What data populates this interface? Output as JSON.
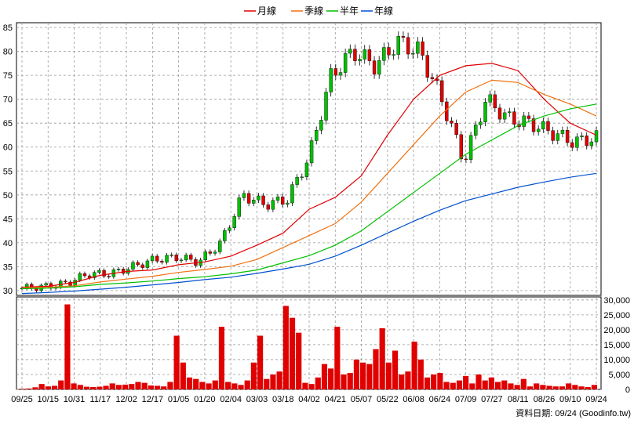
{
  "legend": [
    {
      "label": "月線",
      "color": "#e00000"
    },
    {
      "label": "季線",
      "color": "#f07010"
    },
    {
      "label": "半年",
      "color": "#00c000"
    },
    {
      "label": "年線",
      "color": "#0050d0"
    }
  ],
  "footer": "資料日期: 09/24  (Goodinfo.tw)",
  "colors": {
    "up": "#00c000",
    "down": "#e00000",
    "volume": "#e00000",
    "grid": "#999999"
  },
  "chart_data": {
    "type": "line",
    "price_axis": {
      "ticks": [
        30,
        35,
        40,
        45,
        50,
        55,
        60,
        65,
        70,
        75,
        80,
        85
      ],
      "ylim": [
        29,
        86
      ]
    },
    "volume_axis": {
      "ticks": [
        0,
        5000,
        10000,
        15000,
        20000,
        25000,
        30000
      ],
      "tick_labels": [
        "0",
        "5,000",
        "10,000",
        "15,000",
        "20,000",
        "25,000",
        "30,000"
      ],
      "ylim": [
        0,
        31000
      ]
    },
    "x_labels": [
      "09/25",
      "10/15",
      "10/31",
      "11/17",
      "12/02",
      "12/17",
      "01/05",
      "01/20",
      "02/04",
      "03/03",
      "03/18",
      "04/02",
      "04/21",
      "05/07",
      "05/22",
      "06/08",
      "06/24",
      "07/09",
      "07/27",
      "08/11",
      "08/26",
      "09/10",
      "09/24"
    ],
    "series": [
      {
        "name": "月線",
        "color": "#e00000",
        "values": [
          30.7,
          30.9,
          31.7,
          33.2,
          34.0,
          34.3,
          35.4,
          36.0,
          37.2,
          39.5,
          42.0,
          47.0,
          49.5,
          54.0,
          62.5,
          70.0,
          75.0,
          77.0,
          77.5,
          76.0,
          70.0,
          65.0,
          62.5
        ]
      },
      {
        "name": "季線",
        "color": "#f07010",
        "values": [
          30.6,
          30.7,
          31.0,
          31.8,
          32.4,
          33.0,
          33.8,
          34.4,
          35.1,
          36.5,
          39.0,
          41.5,
          44.0,
          48.5,
          54.5,
          60.5,
          66.5,
          71.5,
          74.0,
          73.5,
          71.0,
          69.0,
          66.5
        ]
      },
      {
        "name": "半年",
        "color": "#00c000",
        "values": [
          30.4,
          30.5,
          30.8,
          31.3,
          31.6,
          32.0,
          32.5,
          32.9,
          33.5,
          34.3,
          35.8,
          37.3,
          39.5,
          42.5,
          46.5,
          50.5,
          54.5,
          58.5,
          61.5,
          64.5,
          66.5,
          68.0,
          69.0
        ]
      },
      {
        "name": "年線",
        "color": "#0050d0",
        "values": [
          29.4,
          29.6,
          29.9,
          30.3,
          30.7,
          31.2,
          31.7,
          32.3,
          32.8,
          33.6,
          34.5,
          35.5,
          37.2,
          39.5,
          42.0,
          44.5,
          46.8,
          48.8,
          50.2,
          51.6,
          52.7,
          53.7,
          54.5
        ]
      }
    ],
    "price_path": [
      30.5,
      30.8,
      31.5,
      33.5,
      33.5,
      35.0,
      36.5,
      37.0,
      36.0,
      40.0,
      50.0,
      48.0,
      49.0,
      58.0,
      75.0,
      80.0,
      77.0,
      82.0,
      80.0,
      70.0,
      57.0,
      70.0,
      66.0,
      65.0,
      63.0,
      61.0,
      62.0
    ],
    "volume": [
      200,
      300,
      700,
      1800,
      1000,
      1200,
      3000,
      28500,
      2000,
      1500,
      900,
      800,
      900,
      1200,
      2000,
      1500,
      1600,
      1800,
      2500,
      2200,
      1300,
      1200,
      1000,
      2500,
      18000,
      9000,
      4000,
      3500,
      2500,
      2000,
      3000,
      21000,
      2500,
      2000,
      1500,
      3000,
      9000,
      18000,
      3500,
      5000,
      6000,
      28000,
      24000,
      19000,
      2200,
      1800,
      4000,
      8500,
      7000,
      21000,
      5000,
      5500,
      10000,
      9000,
      8500,
      13500,
      20500,
      9000,
      13000,
      5000,
      6000,
      16000,
      10000,
      4000,
      5000,
      5500,
      2500,
      2200,
      3000,
      4500,
      2000,
      5000,
      3000,
      4000,
      2500,
      3000,
      2000,
      1500,
      3500,
      1000,
      2000,
      1500,
      1200,
      1000,
      1000,
      2000,
      1500,
      1000,
      800,
      1500
    ]
  }
}
